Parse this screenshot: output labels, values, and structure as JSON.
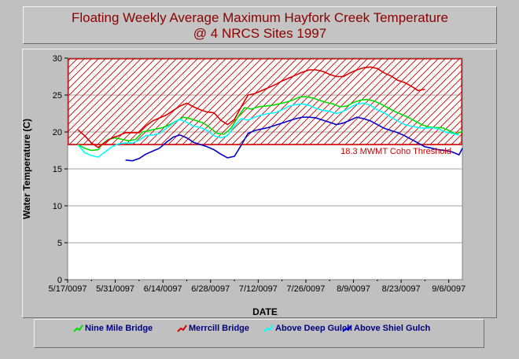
{
  "title": {
    "line1": "Floating Weekly Average Maximum Hayfork Creek Temperature",
    "line2": "@ 4 NRCS Sites 1997"
  },
  "chart_data": {
    "type": "line",
    "title": "Floating Weekly Average Maximum Hayfork Creek Temperature @ 4 NRCS Sites 1997",
    "xlabel": "DATE",
    "ylabel": "Water Temperature (C)",
    "x_tick_labels": [
      "5/17/0097",
      "5/31/0097",
      "6/14/0097",
      "6/28/0097",
      "7/12/0097",
      "7/26/0097",
      "8/9/0097",
      "8/23/0097",
      "9/6/0097"
    ],
    "xlim_days": [
      0,
      116
    ],
    "ylim": [
      0,
      30
    ],
    "y_ticks": [
      0,
      5,
      10,
      15,
      20,
      25,
      30
    ],
    "grid": true,
    "threshold": {
      "value": 18.3,
      "label": "18.3 MWMT Coho Threshold",
      "color": "#cc0000"
    },
    "legend_position": "bottom",
    "series": [
      {
        "name": "Nine Mile Bridge",
        "color": "#00dd00",
        "x": [
          3,
          5,
          7,
          9,
          10,
          12,
          14,
          16,
          18,
          20,
          22,
          25,
          28,
          30,
          32,
          34,
          36,
          38,
          40,
          42,
          44,
          46,
          48,
          50,
          52,
          54,
          56,
          58,
          60,
          62,
          64,
          66,
          68,
          70,
          72,
          74,
          76,
          78,
          80,
          82,
          84,
          86,
          88,
          90,
          92,
          94,
          96,
          98,
          100,
          102,
          104,
          106,
          108,
          110,
          112,
          114,
          116
        ],
        "y": [
          18.3,
          17.8,
          17.5,
          17.6,
          18.3,
          19.0,
          19.2,
          19.0,
          18.8,
          19.0,
          20.0,
          20.3,
          20.6,
          21.0,
          21.5,
          22.0,
          21.8,
          21.5,
          21.2,
          20.5,
          19.8,
          19.7,
          20.5,
          22.0,
          23.3,
          23.1,
          23.4,
          23.5,
          23.6,
          23.8,
          24.0,
          24.3,
          24.7,
          24.8,
          24.6,
          24.3,
          24.0,
          23.8,
          23.4,
          23.5,
          24.0,
          24.3,
          24.4,
          24.2,
          23.8,
          23.3,
          22.8,
          22.4,
          22.0,
          21.5,
          21.0,
          20.7,
          20.6,
          20.6,
          20.2,
          19.7,
          20.1
        ]
      },
      {
        "name": "Merrcill Bridge",
        "color": "#dd0000",
        "x": [
          3,
          5,
          7,
          9,
          11,
          13,
          15,
          17,
          19,
          21,
          23,
          25,
          27,
          29,
          31,
          33,
          35,
          37,
          39,
          41,
          43,
          45,
          47,
          49,
          51,
          53,
          55,
          57,
          59,
          61,
          63,
          65,
          67,
          69,
          71,
          73,
          75,
          77,
          79,
          81,
          83,
          85,
          87,
          89,
          91,
          93,
          95,
          97,
          99,
          101,
          103,
          105
        ],
        "y": [
          20.3,
          19.5,
          18.5,
          17.9,
          18.6,
          19.2,
          19.5,
          19.9,
          19.9,
          19.9,
          20.8,
          21.5,
          21.9,
          22.3,
          22.9,
          23.5,
          23.9,
          23.4,
          23.0,
          22.7,
          22.6,
          21.6,
          21.0,
          21.7,
          23.4,
          25.0,
          25.2,
          25.6,
          26.0,
          26.4,
          26.9,
          27.3,
          27.7,
          28.1,
          28.4,
          28.4,
          28.2,
          27.8,
          27.5,
          27.5,
          28.0,
          28.4,
          28.7,
          28.8,
          28.6,
          28.0,
          27.6,
          27.0,
          26.7,
          26.2,
          25.6,
          25.8
        ]
      },
      {
        "name": "Above Deep Gulch",
        "color": "#00ffff",
        "x": [
          3,
          5,
          7,
          9,
          11,
          13,
          15,
          17,
          19,
          21,
          23,
          25,
          27,
          29,
          31,
          33,
          35,
          37,
          39,
          41,
          43,
          45,
          47,
          49,
          51,
          53,
          55,
          57,
          59,
          61,
          63,
          65,
          67,
          69,
          71,
          73,
          75,
          77,
          79,
          81,
          83,
          85,
          87,
          89,
          91,
          93,
          95,
          97,
          99,
          101,
          103,
          105,
          107,
          109,
          111,
          113,
          115
        ],
        "y": [
          18.3,
          17.2,
          16.8,
          16.6,
          17.3,
          18.0,
          18.4,
          18.5,
          18.5,
          18.9,
          19.5,
          19.6,
          19.8,
          20.5,
          21.2,
          21.7,
          21.3,
          20.8,
          20.6,
          20.2,
          19.5,
          19.2,
          19.5,
          20.8,
          21.8,
          21.6,
          22.0,
          22.3,
          22.5,
          22.6,
          23.0,
          23.5,
          23.7,
          23.8,
          23.6,
          23.2,
          22.9,
          22.8,
          22.5,
          22.8,
          23.3,
          23.8,
          23.9,
          23.6,
          23.0,
          22.6,
          22.0,
          21.5,
          21.0,
          20.8,
          20.6,
          20.5,
          20.6,
          20.4,
          20.0,
          19.8,
          19.6
        ]
      },
      {
        "name": "Above Shiel Gulch",
        "color": "#0000cc",
        "x": [
          17,
          19,
          21,
          23,
          25,
          27,
          29,
          31,
          33,
          35,
          37,
          39,
          41,
          43,
          45,
          47,
          49,
          51,
          53,
          55,
          57,
          59,
          61,
          63,
          65,
          67,
          69,
          71,
          73,
          75,
          77,
          79,
          81,
          83,
          85,
          87,
          89,
          91,
          93,
          95,
          97,
          99,
          101,
          103,
          105,
          107,
          109,
          111,
          113,
          115,
          116
        ],
        "y": [
          16.2,
          16.1,
          16.4,
          17.0,
          17.4,
          17.8,
          18.6,
          19.3,
          19.6,
          19.2,
          18.6,
          18.3,
          18.0,
          17.6,
          17.0,
          16.5,
          16.7,
          18.2,
          19.8,
          20.2,
          20.4,
          20.6,
          20.9,
          21.2,
          21.5,
          21.8,
          22.0,
          22.0,
          21.9,
          21.6,
          21.3,
          21.0,
          21.2,
          21.6,
          22.0,
          21.8,
          21.5,
          21.0,
          20.5,
          20.2,
          19.9,
          19.5,
          19.0,
          18.5,
          18.0,
          17.8,
          17.6,
          17.5,
          17.3,
          16.9,
          17.8
        ]
      }
    ]
  }
}
